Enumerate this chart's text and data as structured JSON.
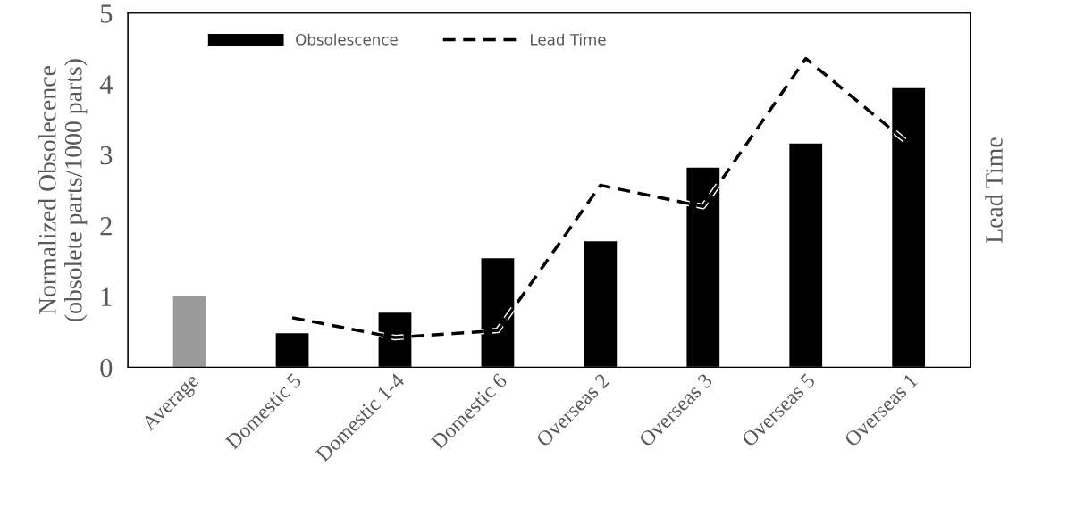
{
  "chart_data": {
    "type": "bar",
    "categories": [
      "Average",
      "Domestic 5",
      "Domestic 1-4",
      "Domestic 6",
      "Overseas 2",
      "Overseas 3",
      "Overseas 5",
      "Overseas 1"
    ],
    "series": [
      {
        "name": "Obsolescence",
        "color": "#000000",
        "colors": [
          "#9a9a9a",
          "#000000",
          "#000000",
          "#000000",
          "#000000",
          "#000000",
          "#000000",
          "#000000"
        ],
        "values": [
          1.0,
          0.48,
          0.77,
          1.54,
          1.78,
          2.82,
          3.16,
          3.94
        ]
      },
      {
        "name": "Lead Time",
        "type": "line",
        "color": "#000000",
        "line_style": "dashed",
        "values": [
          null,
          0.7,
          0.42,
          0.52,
          2.57,
          2.27,
          4.36,
          3.16
        ]
      }
    ],
    "ylabel": "Normalized Obsolecence\n(obsolete parts/1000 parts)",
    "y2label": "Lead Time",
    "ylim": [
      0,
      5
    ],
    "yticks": [
      0,
      1,
      2,
      3,
      4,
      5
    ],
    "legend": "top left",
    "grid": false
  }
}
